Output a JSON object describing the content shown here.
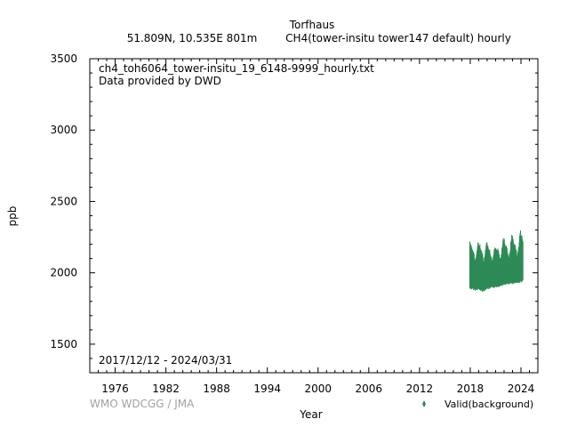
{
  "header": {
    "station": "Torfhaus",
    "location": "51.809N, 10.535E 801m",
    "dataset": "CH4(tower-insitu tower147 default) hourly"
  },
  "annotations": {
    "filename": "ch4_toh6064_tower-insitu_19_6148-9999_hourly.txt",
    "provider": "Data provided by DWD",
    "period": "2017/12/12 - 2024/03/31"
  },
  "credit": "WMO WDCGG / JMA",
  "colors": {
    "series": "#2e8b57",
    "axis": "#000000",
    "credit": "#a0a0a0"
  },
  "chart_data": {
    "type": "scatter",
    "xlabel": "Year",
    "ylabel": "ppb",
    "xlim": [
      1973,
      2026
    ],
    "ylim": [
      1300,
      3500
    ],
    "xticks": [
      1976,
      1982,
      1988,
      1994,
      2000,
      2006,
      2012,
      2018,
      2024
    ],
    "yticks": [
      1500,
      2000,
      2500,
      3000,
      3500
    ],
    "grid": false,
    "legend": {
      "position": "bottom-right",
      "entries": [
        "Valid(background)"
      ]
    },
    "series": [
      {
        "name": "Valid(background)",
        "marker": "diamond",
        "envelope": [
          {
            "x": 2017.95,
            "lo": 1900,
            "hi": 2225
          },
          {
            "x": 2018.3,
            "lo": 1895,
            "hi": 2150
          },
          {
            "x": 2018.6,
            "lo": 1890,
            "hi": 2080
          },
          {
            "x": 2018.9,
            "lo": 1895,
            "hi": 2210
          },
          {
            "x": 2019.3,
            "lo": 1885,
            "hi": 2160
          },
          {
            "x": 2019.6,
            "lo": 1880,
            "hi": 2070
          },
          {
            "x": 2019.9,
            "lo": 1900,
            "hi": 2210
          },
          {
            "x": 2020.3,
            "lo": 1900,
            "hi": 2150
          },
          {
            "x": 2020.6,
            "lo": 1905,
            "hi": 2080
          },
          {
            "x": 2020.9,
            "lo": 1910,
            "hi": 2180
          },
          {
            "x": 2021.3,
            "lo": 1915,
            "hi": 2150
          },
          {
            "x": 2021.6,
            "lo": 1920,
            "hi": 2080
          },
          {
            "x": 2021.9,
            "lo": 1925,
            "hi": 2240
          },
          {
            "x": 2022.3,
            "lo": 1930,
            "hi": 2170
          },
          {
            "x": 2022.6,
            "lo": 1930,
            "hi": 2100
          },
          {
            "x": 2022.9,
            "lo": 1935,
            "hi": 2260
          },
          {
            "x": 2023.3,
            "lo": 1940,
            "hi": 2180
          },
          {
            "x": 2023.6,
            "lo": 1940,
            "hi": 2110
          },
          {
            "x": 2023.9,
            "lo": 1945,
            "hi": 2290
          },
          {
            "x": 2024.25,
            "lo": 1950,
            "hi": 2220
          }
        ]
      }
    ]
  }
}
